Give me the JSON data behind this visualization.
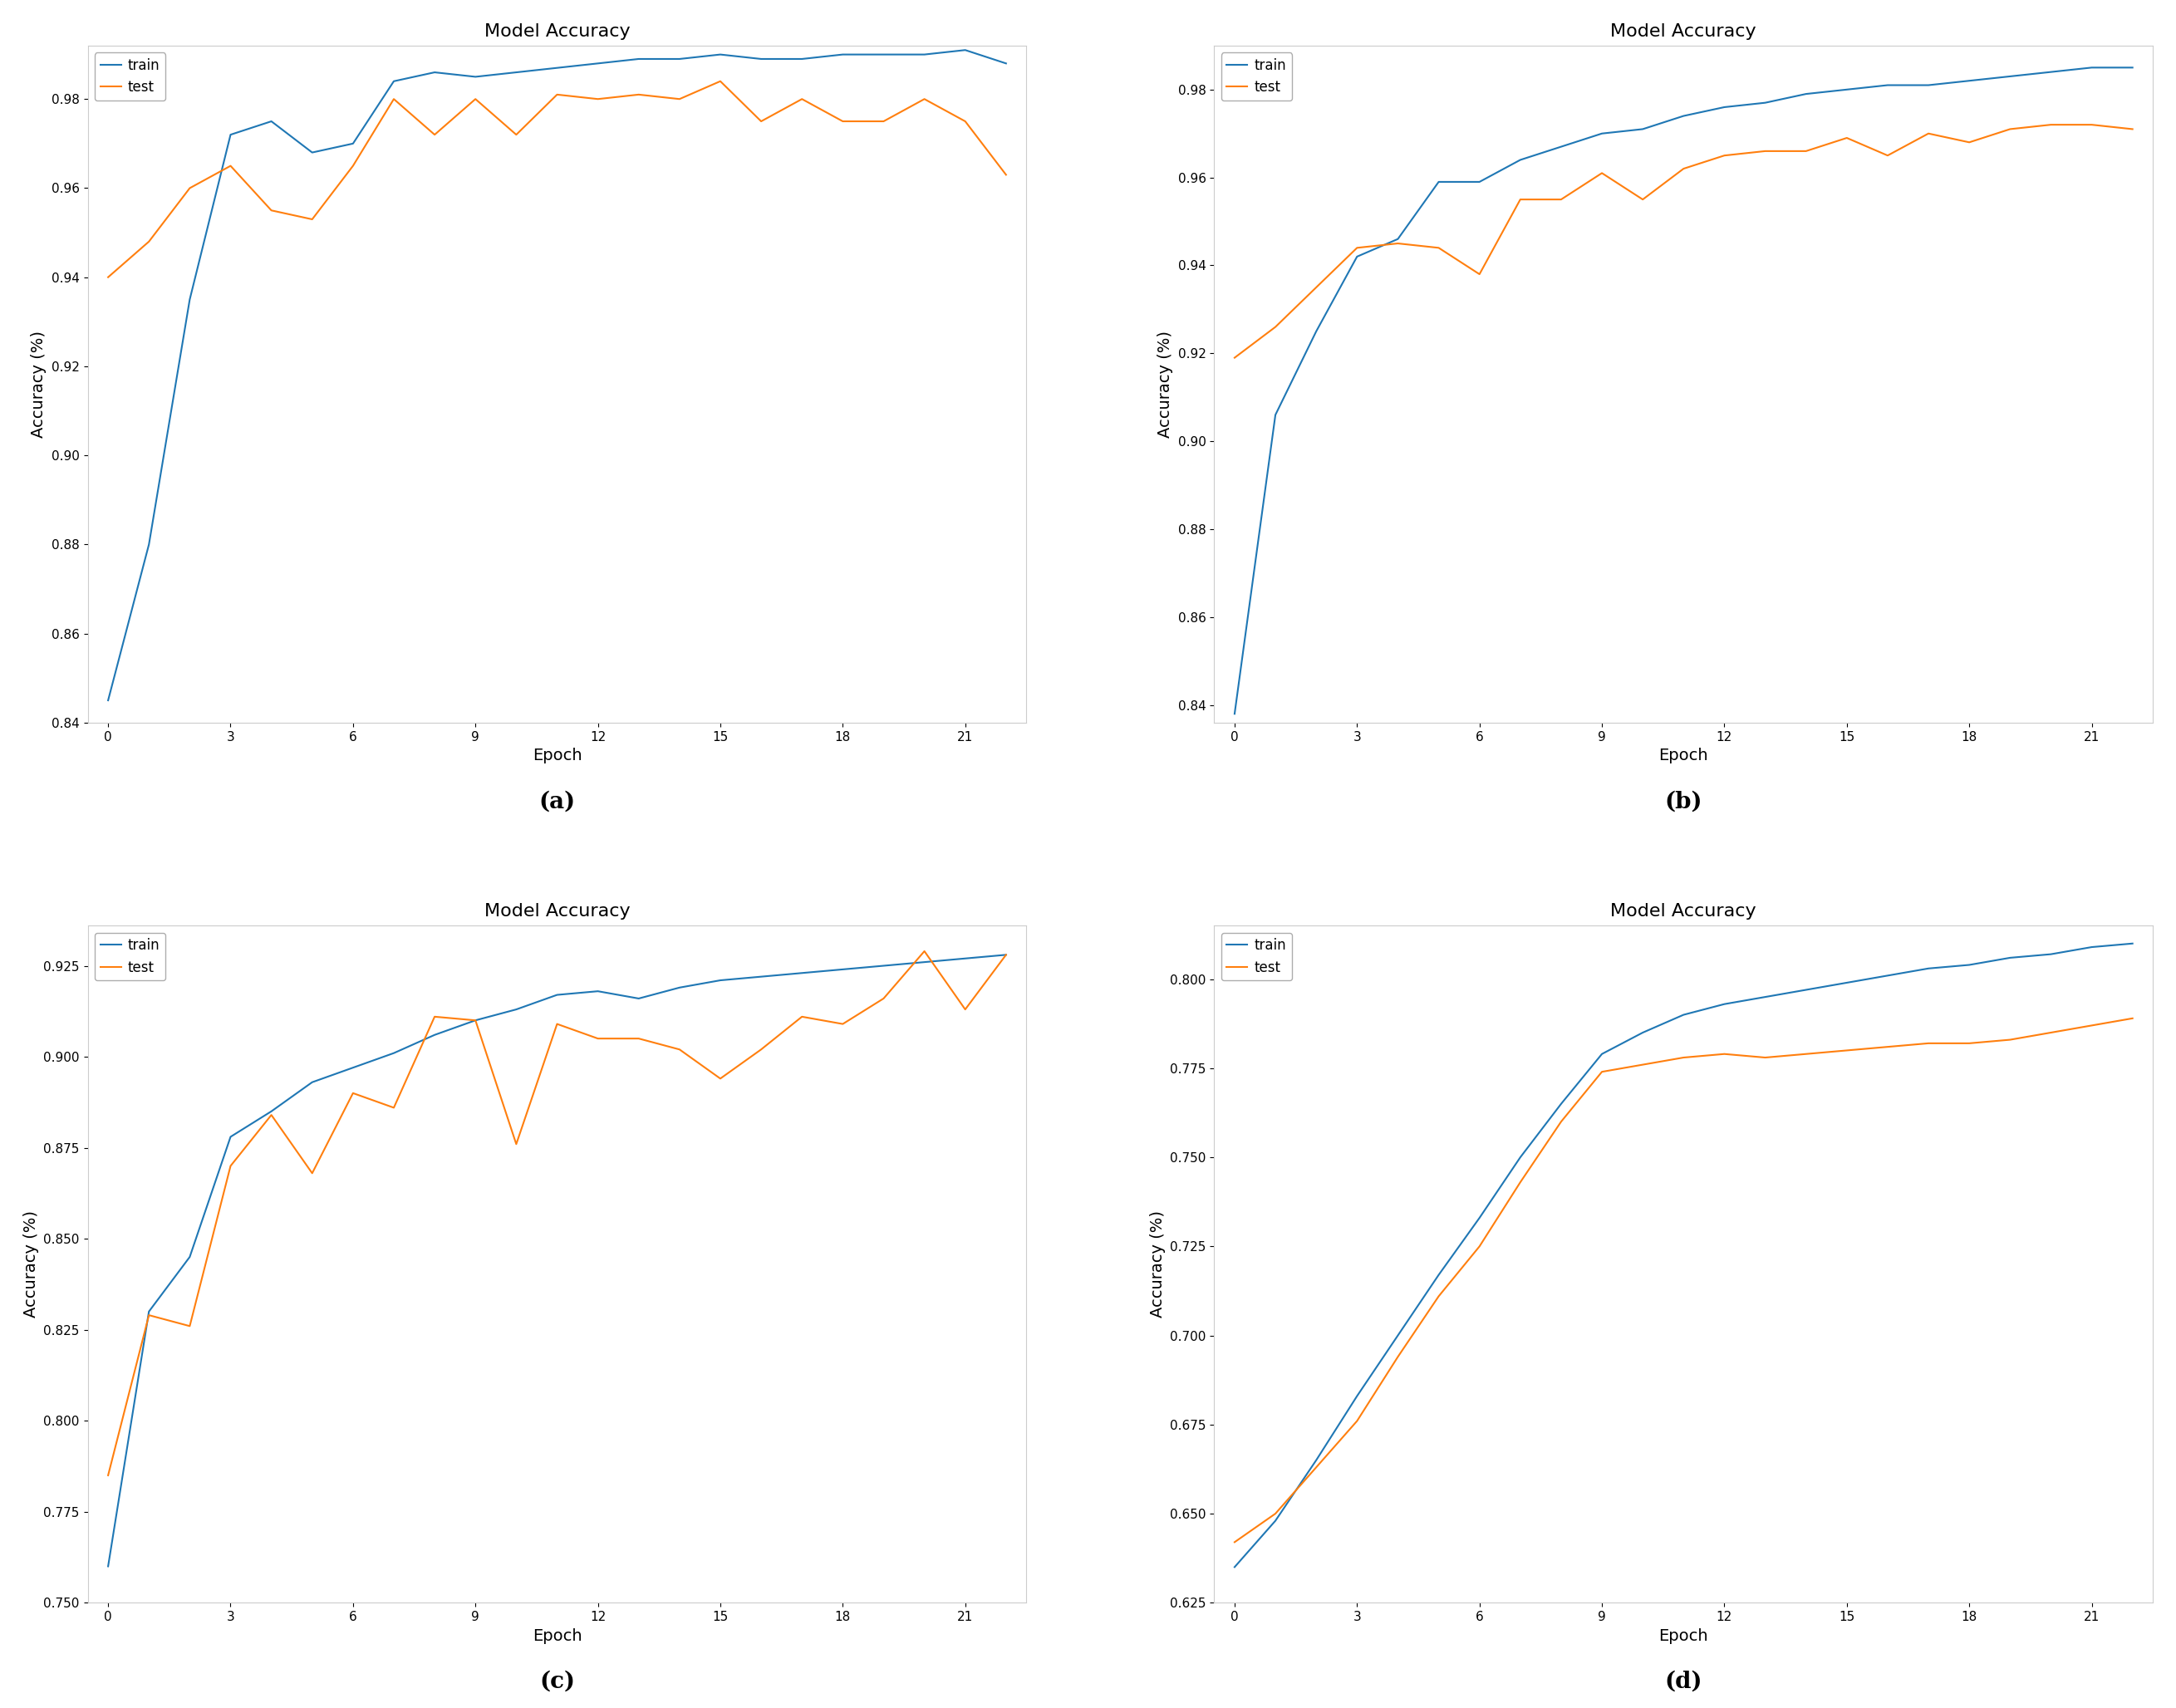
{
  "title": "Model Accuracy",
  "xlabel": "Epoch",
  "ylabel": "Accuracy (%)",
  "train_color": "#1f77b4",
  "test_color": "#ff7f0e",
  "line_width": 1.5,
  "subplot_labels": [
    "(a)",
    "(b)",
    "(c)",
    "(d)"
  ],
  "plots": [
    {
      "train": [
        0.845,
        0.88,
        0.935,
        0.972,
        0.975,
        0.968,
        0.97,
        0.984,
        0.986,
        0.985,
        0.986,
        0.987,
        0.988,
        0.989,
        0.989,
        0.99,
        0.989,
        0.989,
        0.99,
        0.99,
        0.99,
        0.991,
        0.988
      ],
      "test": [
        0.94,
        0.948,
        0.96,
        0.965,
        0.955,
        0.953,
        0.965,
        0.98,
        0.972,
        0.98,
        0.972,
        0.981,
        0.98,
        0.981,
        0.98,
        0.984,
        0.975,
        0.98,
        0.975,
        0.975,
        0.98,
        0.975,
        0.963
      ],
      "ylim": [
        0.84,
        0.992
      ],
      "yticks": [
        0.84,
        0.86,
        0.88,
        0.9,
        0.92,
        0.94,
        0.96,
        0.98
      ]
    },
    {
      "train": [
        0.838,
        0.906,
        0.925,
        0.942,
        0.946,
        0.959,
        0.959,
        0.964,
        0.967,
        0.97,
        0.971,
        0.974,
        0.976,
        0.977,
        0.979,
        0.98,
        0.981,
        0.981,
        0.982,
        0.983,
        0.984,
        0.985,
        0.985
      ],
      "test": [
        0.919,
        0.926,
        0.935,
        0.944,
        0.945,
        0.944,
        0.938,
        0.955,
        0.955,
        0.961,
        0.955,
        0.962,
        0.965,
        0.966,
        0.966,
        0.969,
        0.965,
        0.97,
        0.968,
        0.971,
        0.972,
        0.972,
        0.971
      ],
      "ylim": [
        0.836,
        0.99
      ],
      "yticks": [
        0.84,
        0.86,
        0.88,
        0.9,
        0.92,
        0.94,
        0.96,
        0.98
      ]
    },
    {
      "train": [
        0.76,
        0.83,
        0.845,
        0.878,
        0.885,
        0.893,
        0.897,
        0.901,
        0.906,
        0.91,
        0.913,
        0.917,
        0.918,
        0.916,
        0.919,
        0.921,
        0.922,
        0.923,
        0.924,
        0.925,
        0.926,
        0.927,
        0.928
      ],
      "test": [
        0.785,
        0.829,
        0.826,
        0.87,
        0.884,
        0.868,
        0.89,
        0.886,
        0.911,
        0.91,
        0.876,
        0.909,
        0.905,
        0.905,
        0.902,
        0.894,
        0.902,
        0.911,
        0.909,
        0.916,
        0.929,
        0.913,
        0.928
      ],
      "ylim": [
        0.75,
        0.936
      ],
      "yticks": [
        0.75,
        0.775,
        0.8,
        0.825,
        0.85,
        0.875,
        0.9,
        0.925
      ]
    },
    {
      "train": [
        0.635,
        0.648,
        0.665,
        0.683,
        0.7,
        0.717,
        0.733,
        0.75,
        0.765,
        0.779,
        0.785,
        0.79,
        0.793,
        0.795,
        0.797,
        0.799,
        0.801,
        0.803,
        0.804,
        0.806,
        0.807,
        0.809,
        0.81
      ],
      "test": [
        0.642,
        0.65,
        0.663,
        0.676,
        0.694,
        0.711,
        0.725,
        0.743,
        0.76,
        0.774,
        0.776,
        0.778,
        0.779,
        0.778,
        0.779,
        0.78,
        0.781,
        0.782,
        0.782,
        0.783,
        0.785,
        0.787,
        0.789
      ],
      "ylim": [
        0.625,
        0.815
      ],
      "yticks": [
        0.625,
        0.65,
        0.675,
        0.7,
        0.725,
        0.75,
        0.775,
        0.8
      ]
    }
  ]
}
